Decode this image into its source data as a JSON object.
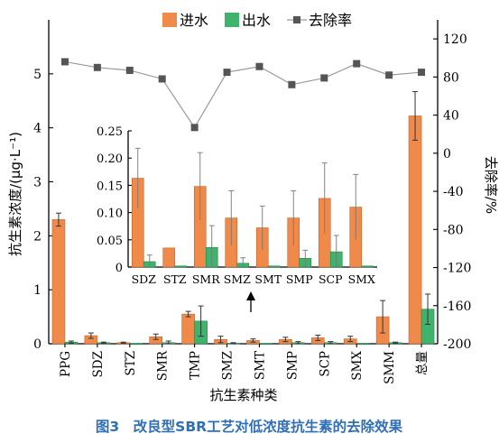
{
  "chart_data": {
    "type": "bar",
    "caption": "图3　改良型SBR工艺对低浓度抗生素的去除效果",
    "xlabel": "抗生素种类",
    "ylabel": "抗生素浓度/(μg·L⁻¹)",
    "y2label": "去除率/%",
    "ylim": [
      0,
      6
    ],
    "yticks": [
      "0",
      "1",
      "2",
      "3",
      "4",
      "5"
    ],
    "y2lim": [
      -200,
      140
    ],
    "y2ticks": [
      "-200",
      "-160",
      "-120",
      "-80",
      "-40",
      "0",
      "40",
      "80",
      "120"
    ],
    "legend": {
      "placement": "top",
      "entries": [
        "进水",
        "出水",
        "去除率"
      ]
    },
    "categories": [
      "PPG",
      "SDZ",
      "STZ",
      "SMR",
      "TMP",
      "SMZ",
      "SMT",
      "SMP",
      "SCP",
      "SMX",
      "SMM",
      "总量"
    ],
    "series": [
      {
        "name": "进水",
        "type": "bar",
        "color": "#f08a4b",
        "values": [
          2.3,
          0.15,
          0.02,
          0.13,
          0.55,
          0.08,
          0.06,
          0.08,
          0.11,
          0.09,
          0.5,
          4.22
        ],
        "errors": [
          0.12,
          0.05,
          0.01,
          0.05,
          0.05,
          0.06,
          0.03,
          0.04,
          0.05,
          0.05,
          0.3,
          0.45
        ]
      },
      {
        "name": "出水",
        "type": "bar",
        "color": "#3fb36c",
        "values": [
          0.03,
          0.02,
          0.0,
          0.02,
          0.42,
          0.01,
          0.0,
          0.02,
          0.02,
          0.0,
          0.02,
          0.64
        ],
        "errors": [
          0.02,
          0.01,
          0.0,
          0.03,
          0.28,
          0.01,
          0.0,
          0.02,
          0.02,
          0.0,
          0.01,
          0.28
        ]
      },
      {
        "name": "去除率",
        "type": "line",
        "axis": "right",
        "color": "#555555",
        "values": [
          96,
          90,
          87,
          78,
          27,
          85,
          91,
          72,
          79,
          94,
          82,
          85
        ]
      }
    ],
    "inset": {
      "ylim": [
        0,
        0.25
      ],
      "yticks": [
        "0",
        "0.05",
        "0.10",
        "0.15",
        "0.20",
        "0.25"
      ],
      "categories": [
        "SDZ",
        "STZ",
        "SMR",
        "SMZ",
        "SMT",
        "SMP",
        "SCP",
        "SMX"
      ],
      "series": [
        {
          "name": "进水",
          "values": [
            0.163,
            0.035,
            0.148,
            0.09,
            0.072,
            0.09,
            0.126,
            0.11
          ],
          "errors": [
            0.055,
            0.0,
            0.062,
            0.05,
            0.04,
            0.05,
            0.065,
            0.06
          ]
        },
        {
          "name": "出水",
          "values": [
            0.01,
            0.002,
            0.036,
            0.007,
            0.002,
            0.016,
            0.028,
            0.002
          ],
          "errors": [
            0.012,
            0.0,
            0.04,
            0.01,
            0.0,
            0.015,
            0.03,
            0.0
          ]
        }
      ]
    }
  }
}
